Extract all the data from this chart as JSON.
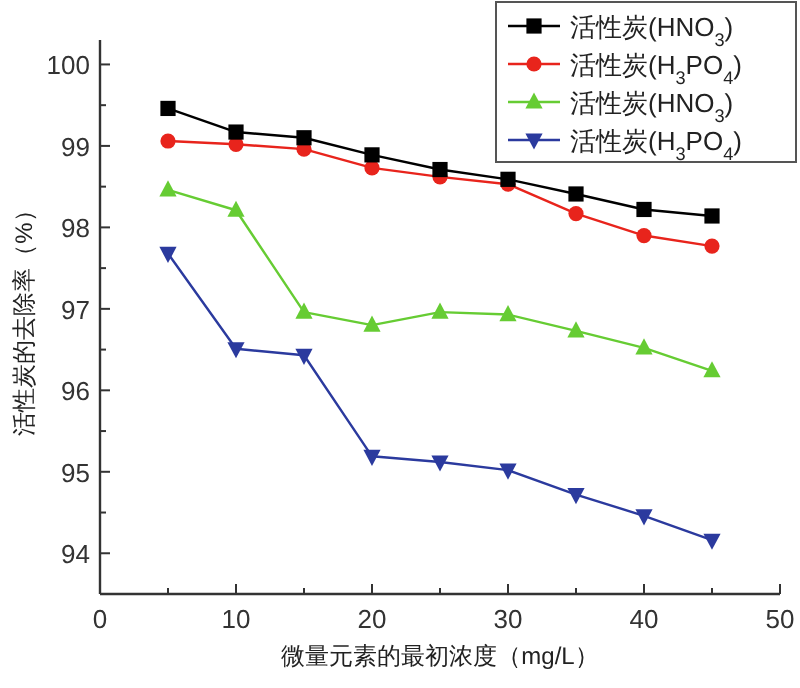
{
  "chart_data": {
    "type": "line",
    "xlabel": "微量元素的最初浓度（mg/L）",
    "ylabel": "活性炭的去除率（%）",
    "xlim": [
      0,
      50
    ],
    "xticks": [
      0,
      10,
      20,
      30,
      40,
      50
    ],
    "ylim": [
      93.5,
      100.3
    ],
    "yticks": [
      94,
      95,
      96,
      97,
      98,
      99,
      100
    ],
    "grid": false,
    "legend": "top right",
    "line_style": "solid",
    "series": [
      {
        "name": "活性炭(HNO$_{3}$)",
        "color": "#000000",
        "marker": "square",
        "x": [
          5,
          10,
          15,
          20,
          25,
          30,
          35,
          40,
          45
        ],
        "values": [
          99.46,
          99.17,
          99.1,
          98.89,
          98.71,
          98.59,
          98.41,
          98.22,
          98.14
        ]
      },
      {
        "name": "活性炭(H$_{3}$PO$_{4}$)",
        "color": "#e8241c",
        "marker": "circle",
        "x": [
          5,
          10,
          15,
          20,
          25,
          30,
          35,
          40,
          45
        ],
        "values": [
          99.06,
          99.02,
          98.96,
          98.73,
          98.62,
          98.53,
          98.17,
          97.9,
          97.77
        ]
      },
      {
        "name": "活性炭(HNO$_{3}$)",
        "color": "#66cc33",
        "marker": "triangle",
        "x": [
          5,
          10,
          15,
          20,
          25,
          30,
          35,
          40,
          45
        ],
        "values": [
          98.46,
          98.21,
          96.96,
          96.8,
          96.96,
          96.93,
          96.73,
          96.52,
          96.24
        ]
      },
      {
        "name": "活性炭(H$_{3}$PO$_{4}$)",
        "color": "#2b3a9e",
        "marker": "triangle-down",
        "x": [
          5,
          10,
          15,
          20,
          25,
          30,
          35,
          40,
          45
        ],
        "values": [
          97.68,
          96.51,
          96.43,
          95.19,
          95.12,
          95.02,
          94.72,
          94.46,
          94.16
        ]
      }
    ]
  }
}
